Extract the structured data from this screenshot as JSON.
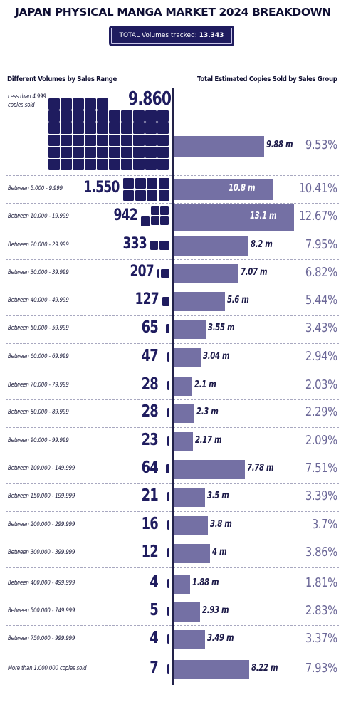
{
  "title": "JAPAN PHYSICAL MANGA MARKET 2024 BREAKDOWN",
  "total": {
    "label": "TOTAL Volumes tracked:",
    "value": "13.343"
  },
  "headers": {
    "left": "Different Volumes by Sales Range",
    "right": "Total Estimated Copies Sold by Sales Group"
  },
  "colors": {
    "navy": "#1f1c5f",
    "bar": "#7470a4",
    "percent": "#6c6898"
  },
  "chart_data": {
    "type": "bar",
    "categories": [
      "Less than 4.999 copies sold",
      "Between 5.000 - 9.999",
      "Between 10.000 - 19.999",
      "Between 20.000 - 29.999",
      "Between 30.000 - 39.999",
      "Between 40.000 - 49.999",
      "Between 50.000 - 59.999",
      "Between 60.000 - 69.999",
      "Between 70.000 - 79.999",
      "Between 80.000 - 89.999",
      "Between 90.000 - 99.999",
      "Between 100.000 - 149.999",
      "Between 150.000 - 199.999",
      "Between 200.000 - 299.999",
      "Between 300.000 - 399.999",
      "Between 400.000 - 499.999",
      "Between 500.000 - 749.999",
      "Between 750.000 - 999.999",
      "More than 1.000.000 copies sold"
    ],
    "series": [
      {
        "name": "Different Volumes by Sales Range",
        "values": [
          9860,
          1550,
          942,
          333,
          207,
          127,
          65,
          47,
          28,
          28,
          23,
          64,
          21,
          16,
          12,
          4,
          5,
          4,
          7
        ],
        "labels": [
          "9.860",
          "1.550",
          "942",
          "333",
          "207",
          "127",
          "65",
          "47",
          "28",
          "28",
          "23",
          "64",
          "21",
          "16",
          "12",
          "4",
          "5",
          "4",
          "7"
        ]
      },
      {
        "name": "Total Estimated Copies Sold by Sales Group",
        "values": [
          9.88,
          10.8,
          13.1,
          8.2,
          7.07,
          5.6,
          3.55,
          3.04,
          2.1,
          2.3,
          2.17,
          7.78,
          3.5,
          3.8,
          4,
          1.88,
          2.93,
          3.49,
          8.22
        ],
        "labels": [
          "9.88 m",
          "10.8 m",
          "13.1 m",
          "8.2 m",
          "7.07 m",
          "5.6 m",
          "3.55 m",
          "3.04 m",
          "2.1 m",
          "2.3 m",
          "2.17 m",
          "7.78 m",
          "3.5 m",
          "3.8 m",
          "4 m",
          "1.88 m",
          "2.93 m",
          "3.49 m",
          "8.22 m"
        ]
      }
    ],
    "percentages": [
      "9.53%",
      "10.41%",
      "12.67%",
      "7.95%",
      "6.82%",
      "5.44%",
      "3.43%",
      "2.94%",
      "2.03%",
      "2.29%",
      "2.09%",
      "7.51%",
      "3.39%",
      "3.7%",
      "3.86%",
      "1.81%",
      "2.83%",
      "3.37%",
      "7.93%"
    ],
    "unit": "m"
  }
}
